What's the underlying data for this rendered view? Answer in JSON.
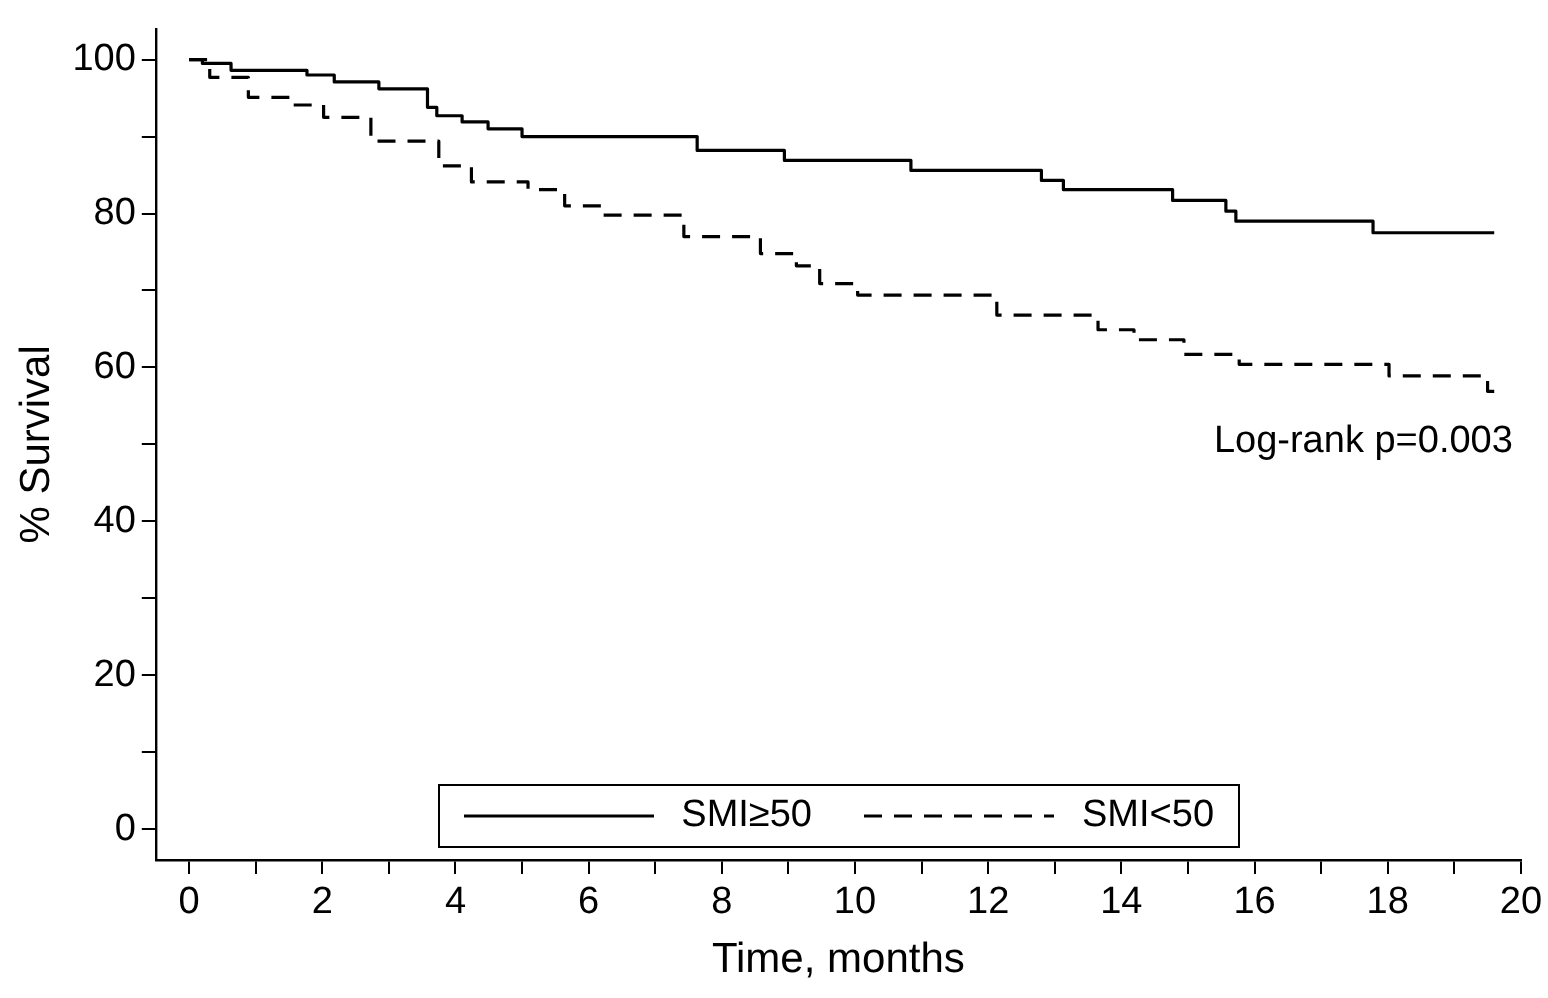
{
  "chart_data": {
    "type": "step",
    "xlabel": "Time, months",
    "ylabel": "% Survival",
    "xlim": [
      -0.5,
      20
    ],
    "ylim": [
      -4,
      104
    ],
    "xticks": [
      0,
      {
        "value": 1,
        "label": null
      },
      2,
      {
        "value": 3,
        "label": null
      },
      4,
      {
        "value": 5,
        "label": null
      },
      6,
      {
        "value": 7,
        "label": null
      },
      8,
      {
        "value": 9,
        "label": null
      },
      10,
      {
        "value": 11,
        "label": null
      },
      12,
      {
        "value": 13,
        "label": null
      },
      14,
      {
        "value": 15,
        "label": null
      },
      16,
      {
        "value": 17,
        "label": null
      },
      18,
      {
        "value": 19,
        "label": null
      },
      20
    ],
    "yticks": [
      0,
      {
        "value": 10,
        "label": null
      },
      20,
      {
        "value": 30,
        "label": null
      },
      40,
      {
        "value": 50,
        "label": null
      },
      60,
      {
        "value": 70,
        "label": null
      },
      80,
      {
        "value": 90,
        "label": null
      },
      100
    ],
    "grid": false,
    "legend": "bottom",
    "marker": "none",
    "series": [
      {
        "name": "SMI≥50",
        "color": "#000000",
        "line_style": "solid",
        "x": [
          0,
          0.2,
          0.63,
          1.77,
          2.18,
          2.85,
          3.58,
          3.72,
          4.1,
          4.49,
          5.0,
          7.63,
          8.94,
          10.84,
          12.8,
          13.13,
          14.77,
          15.57,
          15.72,
          17.78,
          19.6
        ],
        "values": [
          100,
          99.5,
          98.6,
          98.0,
          97.1,
          96.2,
          93.8,
          92.7,
          91.9,
          91.0,
          90.0,
          88.2,
          86.9,
          85.6,
          84.3,
          83.1,
          81.7,
          80.3,
          79.0,
          77.5,
          77.5
        ]
      },
      {
        "name": "SMI<50",
        "color": "#000000",
        "line_style": "dashed",
        "x": [
          0,
          0.31,
          0.89,
          1.56,
          2.02,
          2.73,
          3.75,
          4.24,
          5.09,
          5.64,
          6.21,
          7.43,
          8.58,
          9.12,
          9.47,
          10.04,
          12.13,
          13.65,
          14.19,
          14.94,
          15.77,
          18.02,
          19.5,
          19.6
        ],
        "values": [
          100,
          97.7,
          95.1,
          94.1,
          92.5,
          89.4,
          86.2,
          84.1,
          83.1,
          81.0,
          79.8,
          77.0,
          74.8,
          73.2,
          70.9,
          69.4,
          66.8,
          64.9,
          63.6,
          61.7,
          60.4,
          58.9,
          56.9,
          56.9
        ]
      }
    ],
    "annotations": [
      "Log-rank p=0.003"
    ]
  }
}
